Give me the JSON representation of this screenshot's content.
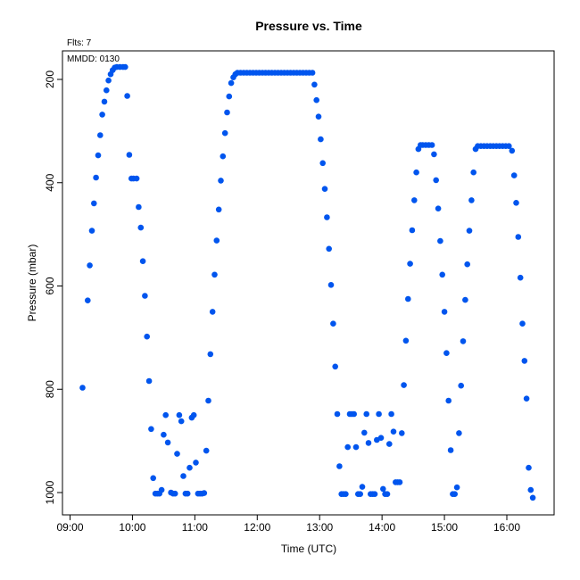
{
  "chart_data": {
    "type": "scatter",
    "title": "Pressure  vs. Time",
    "xlabel": "Time (UTC)",
    "ylabel": "Pressure (mbar)",
    "annotations": {
      "flts": "Flts: 7",
      "mmdd": "MMDD: 0130"
    },
    "x_ticks": [
      "09:00",
      "10:00",
      "11:00",
      "12:00",
      "13:00",
      "14:00",
      "15:00",
      "16:00"
    ],
    "y_ticks": [
      200,
      400,
      600,
      800,
      1000
    ],
    "xlim": [
      "09:00",
      "16:45"
    ],
    "ylim": [
      1040,
      140
    ],
    "y_inverted": true,
    "grid": false,
    "marker_color": "#0055ee",
    "points": [
      [
        "09:12",
        797
      ],
      [
        "09:17",
        628
      ],
      [
        "09:19",
        560
      ],
      [
        "09:21",
        493
      ],
      [
        "09:23",
        440
      ],
      [
        "09:25",
        390
      ],
      [
        "09:27",
        347
      ],
      [
        "09:29",
        308
      ],
      [
        "09:31",
        268
      ],
      [
        "09:33",
        243
      ],
      [
        "09:35",
        221
      ],
      [
        "09:37",
        202
      ],
      [
        "09:39",
        190
      ],
      [
        "09:41",
        182
      ],
      [
        "09:43",
        177
      ],
      [
        "09:45",
        176
      ],
      [
        "09:48",
        176
      ],
      [
        "09:51",
        176
      ],
      [
        "09:53",
        176
      ],
      [
        "09:55",
        232
      ],
      [
        "09:57",
        346
      ],
      [
        "09:59",
        392
      ],
      [
        "10:01",
        392
      ],
      [
        "10:04",
        392
      ],
      [
        "10:06",
        447
      ],
      [
        "10:08",
        487
      ],
      [
        "10:10",
        552
      ],
      [
        "10:12",
        619
      ],
      [
        "10:14",
        698
      ],
      [
        "10:16",
        784
      ],
      [
        "10:18",
        877
      ],
      [
        "10:20",
        972
      ],
      [
        "10:22",
        1002
      ],
      [
        "10:24",
        1002
      ],
      [
        "10:26",
        1002
      ],
      [
        "10:28",
        995
      ],
      [
        "10:30",
        888
      ],
      [
        "10:32",
        850
      ],
      [
        "10:34",
        903
      ],
      [
        "10:37",
        1000
      ],
      [
        "10:39",
        1002
      ],
      [
        "10:41",
        1002
      ],
      [
        "10:43",
        925
      ],
      [
        "10:45",
        850
      ],
      [
        "10:47",
        862
      ],
      [
        "10:49",
        968
      ],
      [
        "10:51",
        1002
      ],
      [
        "10:53",
        1002
      ],
      [
        "10:55",
        952
      ],
      [
        "10:57",
        855
      ],
      [
        "10:59",
        850
      ],
      [
        "11:01",
        942
      ],
      [
        "11:03",
        1002
      ],
      [
        "11:05",
        1002
      ],
      [
        "11:07",
        1002
      ],
      [
        "11:09",
        1001
      ],
      [
        "11:11",
        919
      ],
      [
        "11:13",
        822
      ],
      [
        "11:15",
        732
      ],
      [
        "11:17",
        650
      ],
      [
        "11:19",
        578
      ],
      [
        "11:21",
        512
      ],
      [
        "11:23",
        452
      ],
      [
        "11:25",
        396
      ],
      [
        "11:27",
        349
      ],
      [
        "11:29",
        304
      ],
      [
        "11:31",
        264
      ],
      [
        "11:33",
        233
      ],
      [
        "11:35",
        207
      ],
      [
        "11:37",
        196
      ],
      [
        "11:39",
        190
      ],
      [
        "11:41",
        187
      ],
      [
        "11:44",
        187
      ],
      [
        "11:47",
        187
      ],
      [
        "11:50",
        187
      ],
      [
        "11:53",
        187
      ],
      [
        "11:56",
        187
      ],
      [
        "11:59",
        187
      ],
      [
        "12:02",
        187
      ],
      [
        "12:05",
        187
      ],
      [
        "12:08",
        187
      ],
      [
        "12:11",
        187
      ],
      [
        "12:14",
        187
      ],
      [
        "12:17",
        187
      ],
      [
        "12:20",
        187
      ],
      [
        "12:23",
        187
      ],
      [
        "12:26",
        187
      ],
      [
        "12:29",
        187
      ],
      [
        "12:32",
        187
      ],
      [
        "12:35",
        187
      ],
      [
        "12:38",
        187
      ],
      [
        "12:41",
        187
      ],
      [
        "12:44",
        187
      ],
      [
        "12:47",
        187
      ],
      [
        "12:50",
        187
      ],
      [
        "12:53",
        187
      ],
      [
        "12:55",
        210
      ],
      [
        "12:57",
        240
      ],
      [
        "12:59",
        272
      ],
      [
        "13:01",
        316
      ],
      [
        "13:03",
        362
      ],
      [
        "13:05",
        412
      ],
      [
        "13:07",
        467
      ],
      [
        "13:09",
        528
      ],
      [
        "13:11",
        598
      ],
      [
        "13:13",
        673
      ],
      [
        "13:15",
        756
      ],
      [
        "13:17",
        848
      ],
      [
        "13:19",
        949
      ],
      [
        "13:21",
        1003
      ],
      [
        "13:23",
        1003
      ],
      [
        "13:25",
        1003
      ],
      [
        "13:27",
        912
      ],
      [
        "13:29",
        848
      ],
      [
        "13:31",
        848
      ],
      [
        "13:33",
        848
      ],
      [
        "13:35",
        912
      ],
      [
        "13:37",
        1003
      ],
      [
        "13:39",
        1003
      ],
      [
        "13:41",
        989
      ],
      [
        "13:43",
        884
      ],
      [
        "13:45",
        848
      ],
      [
        "13:47",
        904
      ],
      [
        "13:49",
        1003
      ],
      [
        "13:51",
        1003
      ],
      [
        "13:53",
        1003
      ],
      [
        "13:55",
        898
      ],
      [
        "13:57",
        848
      ],
      [
        "13:59",
        894
      ],
      [
        "14:01",
        993
      ],
      [
        "14:03",
        1003
      ],
      [
        "14:05",
        1003
      ],
      [
        "14:07",
        906
      ],
      [
        "14:09",
        848
      ],
      [
        "14:11",
        882
      ],
      [
        "14:13",
        980
      ],
      [
        "14:15",
        980
      ],
      [
        "14:17",
        980
      ],
      [
        "14:19",
        885
      ],
      [
        "14:21",
        792
      ],
      [
        "14:23",
        706
      ],
      [
        "14:25",
        625
      ],
      [
        "14:27",
        557
      ],
      [
        "14:29",
        492
      ],
      [
        "14:31",
        434
      ],
      [
        "14:33",
        380
      ],
      [
        "14:35",
        335
      ],
      [
        "14:37",
        327
      ],
      [
        "14:39",
        327
      ],
      [
        "14:42",
        327
      ],
      [
        "14:45",
        327
      ],
      [
        "14:48",
        327
      ],
      [
        "14:50",
        345
      ],
      [
        "14:52",
        395
      ],
      [
        "14:54",
        450
      ],
      [
        "14:56",
        513
      ],
      [
        "14:58",
        578
      ],
      [
        "15:00",
        650
      ],
      [
        "15:02",
        730
      ],
      [
        "15:04",
        822
      ],
      [
        "15:06",
        918
      ],
      [
        "15:08",
        1003
      ],
      [
        "15:10",
        1003
      ],
      [
        "15:12",
        990
      ],
      [
        "15:14",
        885
      ],
      [
        "15:16",
        793
      ],
      [
        "15:18",
        707
      ],
      [
        "15:20",
        627
      ],
      [
        "15:22",
        558
      ],
      [
        "15:24",
        493
      ],
      [
        "15:26",
        434
      ],
      [
        "15:28",
        380
      ],
      [
        "15:30",
        335
      ],
      [
        "15:32",
        329
      ],
      [
        "15:35",
        329
      ],
      [
        "15:38",
        329
      ],
      [
        "15:41",
        329
      ],
      [
        "15:44",
        329
      ],
      [
        "15:47",
        329
      ],
      [
        "15:50",
        329
      ],
      [
        "15:53",
        329
      ],
      [
        "15:56",
        329
      ],
      [
        "15:59",
        329
      ],
      [
        "16:02",
        329
      ],
      [
        "16:05",
        338
      ],
      [
        "16:07",
        386
      ],
      [
        "16:09",
        439
      ],
      [
        "16:11",
        505
      ],
      [
        "16:13",
        584
      ],
      [
        "16:15",
        673
      ],
      [
        "16:17",
        745
      ],
      [
        "16:19",
        818
      ],
      [
        "16:21",
        952
      ],
      [
        "16:23",
        995
      ],
      [
        "16:25",
        1010
      ]
    ]
  }
}
